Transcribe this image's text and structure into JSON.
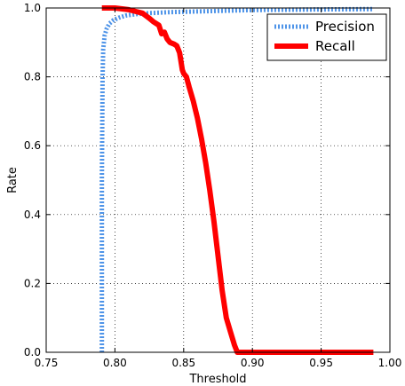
{
  "chart_data": {
    "type": "line",
    "title": "",
    "xlabel": "Threshold",
    "ylabel": "Rate",
    "xlim": [
      0.75,
      1.0
    ],
    "ylim": [
      0.0,
      1.0
    ],
    "xticks": [
      0.75,
      0.8,
      0.85,
      0.9,
      0.95,
      1.0
    ],
    "xtick_labels": [
      "0.75",
      "0.80",
      "0.85",
      "0.90",
      "0.95",
      "1.00"
    ],
    "yticks": [
      0.0,
      0.2,
      0.4,
      0.6,
      0.8,
      1.0
    ],
    "ytick_labels": [
      "0.0",
      "0.2",
      "0.4",
      "0.6",
      "0.8",
      "1.0"
    ],
    "grid": true,
    "legend_position": "top-right",
    "series": [
      {
        "name": "Precision",
        "color": "#4f94e8",
        "style": "dotted",
        "x": [
          0.7905,
          0.7905,
          0.791,
          0.7915,
          0.7925,
          0.794,
          0.796,
          0.799,
          0.803,
          0.808,
          0.815,
          0.825,
          0.84,
          0.86,
          0.88,
          0.9,
          0.95,
          0.988
        ],
        "y": [
          0.0,
          0.5,
          0.8,
          0.88,
          0.92,
          0.94,
          0.955,
          0.965,
          0.972,
          0.978,
          0.982,
          0.985,
          0.988,
          0.99,
          0.992,
          0.994,
          0.996,
          0.997
        ]
      },
      {
        "name": "Recall",
        "color": "#ff0000",
        "style": "solid",
        "x": [
          0.7905,
          0.8,
          0.81,
          0.815,
          0.82,
          0.825,
          0.828,
          0.832,
          0.834,
          0.836,
          0.838,
          0.84,
          0.843,
          0.845,
          0.847,
          0.849,
          0.85,
          0.852,
          0.854,
          0.857,
          0.86,
          0.863,
          0.866,
          0.869,
          0.872,
          0.875,
          0.878,
          0.881,
          0.884,
          0.887,
          0.889,
          0.9,
          0.95,
          0.988
        ],
        "y": [
          1.0,
          1.0,
          0.995,
          0.99,
          0.985,
          0.97,
          0.96,
          0.95,
          0.925,
          0.93,
          0.91,
          0.9,
          0.895,
          0.89,
          0.87,
          0.82,
          0.81,
          0.8,
          0.77,
          0.73,
          0.68,
          0.62,
          0.55,
          0.47,
          0.38,
          0.28,
          0.18,
          0.1,
          0.06,
          0.02,
          0.0,
          0.0,
          0.0,
          0.0
        ]
      }
    ]
  }
}
